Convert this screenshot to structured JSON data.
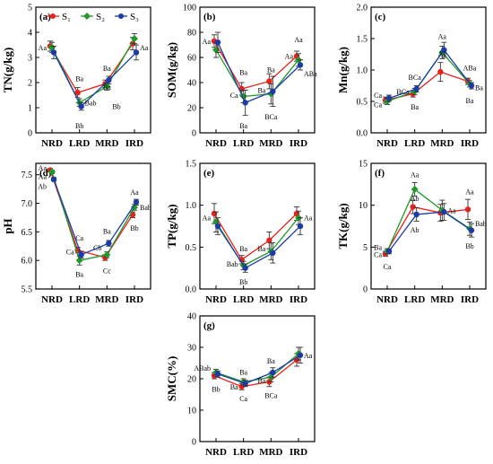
{
  "colors": {
    "S1": "#e8221b",
    "S2": "#1f9a2a",
    "S3": "#1a3ba8"
  },
  "legend": [
    "S₁",
    "S₂",
    "S₃"
  ],
  "chart_data": [
    {
      "type": "line",
      "panel_label": "(a)",
      "ylabel": "TN(g/kg)",
      "ylim": [
        0,
        5
      ],
      "yticks": [
        0,
        1,
        2,
        3,
        4,
        5
      ],
      "categories": [
        "NRD",
        "LRD",
        "MRD",
        "IRD"
      ],
      "series": [
        {
          "name": "S₁",
          "values": [
            3.45,
            1.6,
            1.95,
            3.55
          ],
          "err": [
            0.2,
            0.2,
            0.15,
            0.25
          ]
        },
        {
          "name": "S₂",
          "values": [
            3.4,
            1.2,
            1.85,
            3.75
          ],
          "err": [
            0.2,
            0.15,
            0.15,
            0.2
          ]
        },
        {
          "name": "S₃",
          "values": [
            3.2,
            1.05,
            2.1,
            3.2
          ],
          "err": [
            0.25,
            0.15,
            0.15,
            0.3
          ]
        }
      ],
      "annotations": [
        {
          "text": "Aa",
          "x": 0,
          "y": 3.4,
          "pos": "left"
        },
        {
          "text": "Ba",
          "x": 1,
          "y": 1.95,
          "pos": "above"
        },
        {
          "text": "Bab",
          "x": 1,
          "y": 1.2,
          "pos": "right"
        },
        {
          "text": "Bb",
          "x": 1,
          "y": 0.5,
          "pos": "below"
        },
        {
          "text": "Ba",
          "x": 2,
          "y": 2.35,
          "pos": "above"
        },
        {
          "text": "Ba",
          "x": 2,
          "y": 1.6,
          "pos": "above"
        },
        {
          "text": "Bb",
          "x": 2,
          "y": 1.05,
          "pos": "right"
        },
        {
          "text": "Aa",
          "x": 3,
          "y": 3.4,
          "pos": "right"
        }
      ]
    },
    {
      "type": "line",
      "panel_label": "(b)",
      "ylabel": "SOM(g/kg)",
      "ylim": [
        0,
        100
      ],
      "yticks": [
        0,
        20,
        40,
        60,
        80,
        100
      ],
      "categories": [
        "NRD",
        "LRD",
        "MRD",
        "IRD"
      ],
      "series": [
        {
          "name": "S₁",
          "values": [
            73,
            35,
            41,
            61
          ],
          "err": [
            5,
            5,
            6,
            4
          ]
        },
        {
          "name": "S₂",
          "values": [
            66,
            29,
            31,
            58
          ],
          "err": [
            6,
            5,
            8,
            5
          ]
        },
        {
          "name": "S₃",
          "values": [
            72,
            24,
            33,
            54
          ],
          "err": [
            8,
            10,
            12,
            4
          ]
        }
      ],
      "annotations": [
        {
          "text": "Aa",
          "x": 0,
          "y": 73,
          "pos": "left"
        },
        {
          "text": "Ba",
          "x": 1,
          "y": 44,
          "pos": "above"
        },
        {
          "text": "Ca",
          "x": 1,
          "y": 30,
          "pos": "left"
        },
        {
          "text": "Ba",
          "x": 1,
          "y": 10,
          "pos": "below"
        },
        {
          "text": "Ba",
          "x": 2,
          "y": 46,
          "pos": "above"
        },
        {
          "text": "Ba",
          "x": 2,
          "y": 34,
          "pos": "left"
        },
        {
          "text": "BCa",
          "x": 2,
          "y": 17,
          "pos": "below"
        },
        {
          "text": "Aa",
          "x": 3,
          "y": 70,
          "pos": "above"
        },
        {
          "text": "Aa",
          "x": 3,
          "y": 61,
          "pos": "left"
        },
        {
          "text": "ABa",
          "x": 3,
          "y": 47,
          "pos": "right"
        }
      ]
    },
    {
      "type": "line",
      "panel_label": "(c)",
      "ylabel": "Mn(g/kg)",
      "ylim": [
        0,
        2
      ],
      "yticks": [
        0.0,
        0.5,
        1.0,
        1.5,
        2.0
      ],
      "categories": [
        "NRD",
        "LRD",
        "MRD",
        "IRD"
      ],
      "series": [
        {
          "name": "S₁",
          "values": [
            0.52,
            0.62,
            0.97,
            0.82
          ],
          "err": [
            0.05,
            0.05,
            0.15,
            0.05
          ]
        },
        {
          "name": "S₂",
          "values": [
            0.5,
            0.66,
            1.28,
            0.78
          ],
          "err": [
            0.05,
            0.05,
            0.1,
            0.05
          ]
        },
        {
          "name": "S₃",
          "values": [
            0.55,
            0.7,
            1.32,
            0.75
          ],
          "err": [
            0.05,
            0.05,
            0.12,
            0.05
          ]
        }
      ],
      "annotations": [
        {
          "text": "Ca",
          "x": 0,
          "y": 0.6,
          "pos": "left"
        },
        {
          "text": "Ca",
          "x": 0,
          "y": 0.45,
          "pos": "left"
        },
        {
          "text": "BCa",
          "x": 1,
          "y": 0.8,
          "pos": "above"
        },
        {
          "text": "BCa",
          "x": 1,
          "y": 0.66,
          "pos": "left"
        },
        {
          "text": "Ba",
          "x": 1,
          "y": 0.5,
          "pos": "below"
        },
        {
          "text": "Aa",
          "x": 2,
          "y": 1.45,
          "pos": "above"
        },
        {
          "text": "Aa",
          "x": 2,
          "y": 1.18,
          "pos": "above"
        },
        {
          "text": "ABa",
          "x": 3,
          "y": 0.95,
          "pos": "above"
        },
        {
          "text": "Ba",
          "x": 3,
          "y": 0.72,
          "pos": "right"
        },
        {
          "text": "Ba",
          "x": 3,
          "y": 0.6,
          "pos": "below"
        }
      ]
    },
    {
      "type": "line",
      "panel_label": "(d)",
      "ylabel": "pH",
      "ylim": [
        5.5,
        7.7
      ],
      "yticks": [
        5.5,
        6.0,
        6.5,
        7.0,
        7.5
      ],
      "categories": [
        "NRD",
        "LRD",
        "MRD",
        "IRD"
      ],
      "series": [
        {
          "name": "S₁",
          "values": [
            7.58,
            6.18,
            6.05,
            6.8
          ],
          "err": [
            0.03,
            0.05,
            0.05,
            0.05
          ]
        },
        {
          "name": "S₂",
          "values": [
            7.55,
            6.0,
            6.1,
            6.93
          ],
          "err": [
            0.03,
            0.08,
            0.05,
            0.05
          ]
        },
        {
          "name": "S₃",
          "values": [
            7.42,
            6.1,
            6.3,
            7.02
          ],
          "err": [
            0.03,
            0.06,
            0.05,
            0.05
          ]
        }
      ],
      "annotations": [
        {
          "text": "Aa",
          "x": 0,
          "y": 7.62,
          "pos": "left"
        },
        {
          "text": "Aa",
          "x": 0,
          "y": 7.47,
          "pos": "left"
        },
        {
          "text": "Ab",
          "x": 0,
          "y": 7.3,
          "pos": "left"
        },
        {
          "text": "Ca",
          "x": 1,
          "y": 6.3,
          "pos": "above"
        },
        {
          "text": "Ca",
          "x": 1,
          "y": 6.15,
          "pos": "left"
        },
        {
          "text": "Ba",
          "x": 1,
          "y": 5.85,
          "pos": "below"
        },
        {
          "text": "Ba",
          "x": 2,
          "y": 6.42,
          "pos": "above"
        },
        {
          "text": "Cb",
          "x": 2,
          "y": 6.22,
          "pos": "left"
        },
        {
          "text": "Cc",
          "x": 2,
          "y": 5.92,
          "pos": "below"
        },
        {
          "text": "Aa",
          "x": 3,
          "y": 7.1,
          "pos": "above"
        },
        {
          "text": "Bab",
          "x": 3,
          "y": 6.93,
          "pos": "right"
        },
        {
          "text": "Bb",
          "x": 3,
          "y": 6.66,
          "pos": "below"
        }
      ]
    },
    {
      "type": "line",
      "panel_label": "(e)",
      "ylabel": "TP(g/kg)",
      "ylim": [
        0,
        1.5
      ],
      "yticks": [
        0.0,
        0.5,
        1.0,
        1.5
      ],
      "categories": [
        "NRD",
        "LRD",
        "MRD",
        "IRD"
      ],
      "series": [
        {
          "name": "S₁",
          "values": [
            0.9,
            0.35,
            0.58,
            0.9
          ],
          "err": [
            0.12,
            0.05,
            0.1,
            0.08
          ]
        },
        {
          "name": "S₂",
          "values": [
            0.8,
            0.28,
            0.45,
            0.85
          ],
          "err": [
            0.12,
            0.05,
            0.1,
            0.08
          ]
        },
        {
          "name": "S₃",
          "values": [
            0.75,
            0.25,
            0.43,
            0.75
          ],
          "err": [
            0.1,
            0.05,
            0.12,
            0.1
          ]
        }
      ],
      "annotations": [
        {
          "text": "Aa",
          "x": 0,
          "y": 0.85,
          "pos": "left"
        },
        {
          "text": "Ba",
          "x": 1,
          "y": 0.42,
          "pos": "above"
        },
        {
          "text": "Bab",
          "x": 1,
          "y": 0.3,
          "pos": "left"
        },
        {
          "text": "Bb",
          "x": 1,
          "y": 0.15,
          "pos": "below"
        },
        {
          "text": "Ba",
          "x": 2,
          "y": 0.48,
          "pos": "left"
        },
        {
          "text": "Aa",
          "x": 3,
          "y": 0.85,
          "pos": "right"
        }
      ]
    },
    {
      "type": "line",
      "panel_label": "(f)",
      "ylabel": "TK(g/kg)",
      "ylim": [
        0,
        15
      ],
      "yticks": [
        0,
        5,
        10,
        15
      ],
      "categories": [
        "NRD",
        "LRD",
        "MRD",
        "IRD"
      ],
      "series": [
        {
          "name": "S₁",
          "values": [
            4.2,
            9.8,
            9.1,
            9.5
          ],
          "err": [
            0.3,
            0.8,
            1.0,
            1.2
          ]
        },
        {
          "name": "S₂",
          "values": [
            4.5,
            11.9,
            9.4,
            7.2
          ],
          "err": [
            0.3,
            0.8,
            1.2,
            0.8
          ]
        },
        {
          "name": "S₃",
          "values": [
            4.5,
            8.9,
            9.2,
            7.0
          ],
          "err": [
            0.3,
            0.8,
            1.0,
            0.8
          ]
        }
      ],
      "annotations": [
        {
          "text": "Ba",
          "x": 0,
          "y": 5.0,
          "pos": "left"
        },
        {
          "text": "Ca",
          "x": 0,
          "y": 4.1,
          "pos": "left"
        },
        {
          "text": "Ca",
          "x": 0,
          "y": 3.3,
          "pos": "below"
        },
        {
          "text": "Aa",
          "x": 1,
          "y": 13.0,
          "pos": "above"
        },
        {
          "text": "Ab",
          "x": 1,
          "y": 10.2,
          "pos": "above"
        },
        {
          "text": "Ab",
          "x": 1,
          "y": 7.7,
          "pos": "below"
        },
        {
          "text": "Aa",
          "x": 2,
          "y": 9.4,
          "pos": "right"
        },
        {
          "text": "Aa",
          "x": 3,
          "y": 11.0,
          "pos": "above"
        },
        {
          "text": "Bab",
          "x": 3,
          "y": 7.8,
          "pos": "right"
        },
        {
          "text": "Bb",
          "x": 3,
          "y": 5.8,
          "pos": "below"
        }
      ]
    },
    {
      "type": "line",
      "panel_label": "(g)",
      "ylabel": "SMC(%)",
      "ylim": [
        0,
        40
      ],
      "yticks": [
        0,
        10,
        20,
        30,
        40
      ],
      "categories": [
        "NRD",
        "LRD",
        "MRD",
        "IRD"
      ],
      "series": [
        {
          "name": "S₁",
          "values": [
            21,
            17.5,
            19,
            26
          ],
          "err": [
            1,
            1,
            1.5,
            2
          ]
        },
        {
          "name": "S₂",
          "values": [
            22,
            19,
            20.5,
            28
          ],
          "err": [
            1,
            1,
            1.5,
            2
          ]
        },
        {
          "name": "S₃",
          "values": [
            21.5,
            18.5,
            22,
            27.5
          ],
          "err": [
            1,
            1,
            1.5,
            2.5
          ]
        }
      ],
      "annotations": [
        {
          "text": "ABab",
          "x": 0,
          "y": 23.5,
          "pos": "left"
        },
        {
          "text": "Bb",
          "x": 0,
          "y": 18.5,
          "pos": "below"
        },
        {
          "text": "Ba",
          "x": 1,
          "y": 20.5,
          "pos": "above"
        },
        {
          "text": "Ba",
          "x": 1,
          "y": 17.5,
          "pos": "left"
        },
        {
          "text": "Ca",
          "x": 1,
          "y": 15.5,
          "pos": "below"
        },
        {
          "text": "Ba",
          "x": 2,
          "y": 24,
          "pos": "above"
        },
        {
          "text": "Ba",
          "x": 2,
          "y": 19.5,
          "pos": "left"
        },
        {
          "text": "BCa",
          "x": 2,
          "y": 16.5,
          "pos": "below"
        },
        {
          "text": "Aa",
          "x": 3,
          "y": 27.5,
          "pos": "right"
        }
      ]
    }
  ]
}
